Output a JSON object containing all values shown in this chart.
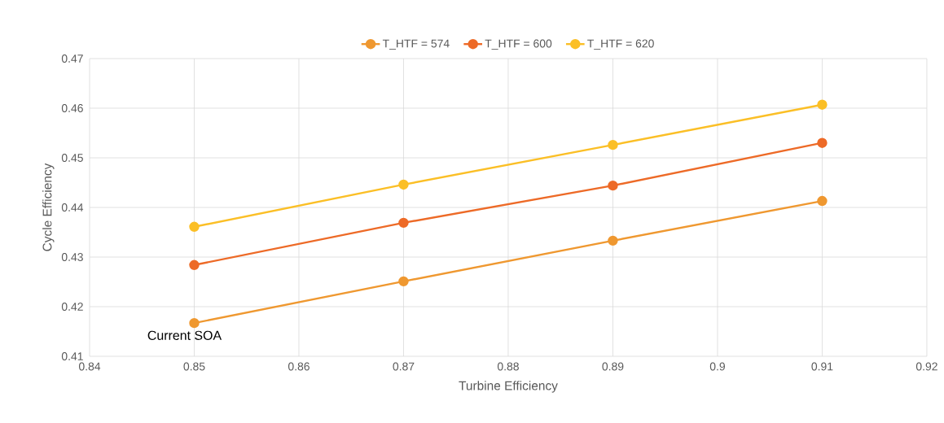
{
  "chart_data": {
    "type": "line",
    "xlabel": "Turbine Efficiency",
    "ylabel": "Cycle Efficiency",
    "x": [
      0.85,
      0.87,
      0.89,
      0.91
    ],
    "series": [
      {
        "name": "T_HTF = 574",
        "color": "#ef9830",
        "values": [
          0.4167,
          0.4251,
          0.4333,
          0.4413
        ]
      },
      {
        "name": "T_HTF = 600",
        "color": "#ed6a27",
        "values": [
          0.4284,
          0.4369,
          0.4444,
          0.453
        ]
      },
      {
        "name": "T_HTF = 620",
        "color": "#fbbf26",
        "values": [
          0.4361,
          0.4446,
          0.4526,
          0.4607
        ]
      }
    ],
    "xlim": [
      0.84,
      0.92
    ],
    "ylim": [
      0.41,
      0.47
    ],
    "xticks": [
      0.84,
      0.85,
      0.86,
      0.87,
      0.88,
      0.89,
      0.9,
      0.91,
      0.92
    ],
    "yticks": [
      0.41,
      0.42,
      0.43,
      0.44,
      0.45,
      0.46,
      0.47
    ],
    "grid": true,
    "legend": "top",
    "marker": "circle",
    "line_style": "solid",
    "annotations": [
      {
        "text": "Current SOA",
        "x": 0.85,
        "y": 0.4167
      }
    ]
  }
}
